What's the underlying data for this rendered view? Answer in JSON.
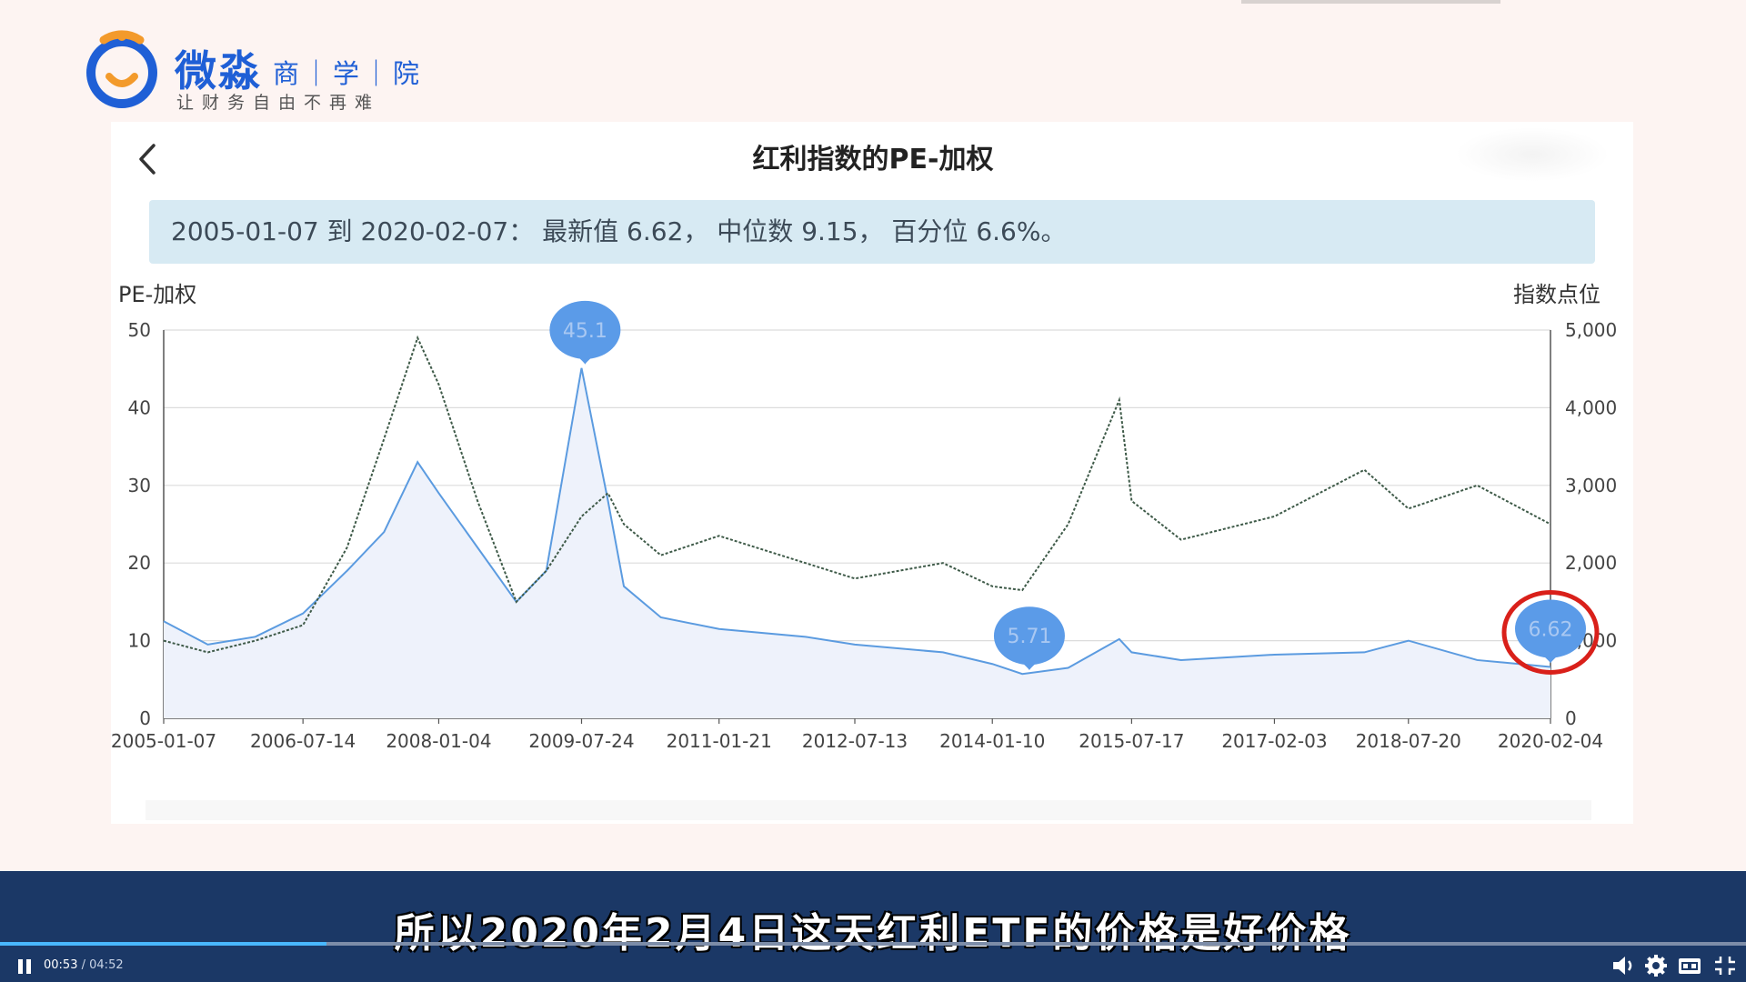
{
  "logo": {
    "name": "微淼",
    "suffix": "商｜学｜院",
    "slogan": "让财务自由不再难"
  },
  "header": {
    "title": "红利指数的PE-加权"
  },
  "summary_text": "2005-01-07 到 2020-02-07：  最新值 6.62，  中位数 9.15，  百分位 6.6%。",
  "colors": {
    "pe_line": "#5b9be0",
    "pe_fill": "#eef2fb",
    "index_line": "#3e5a48",
    "pin": "#5b9be8",
    "highlight_ring": "#d9201a",
    "video_bar": "#1b3866",
    "progress": "#49b7ff"
  },
  "chart_data": {
    "type": "line",
    "title": "红利指数的PE-加权",
    "ylabel_left": "PE-加权",
    "ylabel_right": "指数点位",
    "x_ticks": [
      "2005-01-07",
      "2006-07-14",
      "2008-01-04",
      "2009-07-24",
      "2011-01-21",
      "2012-07-13",
      "2014-01-10",
      "2015-07-17",
      "2017-02-03",
      "2018-07-20",
      "2020-02-04"
    ],
    "ylim_left": [
      0,
      50
    ],
    "yticks_left": [
      0,
      10,
      20,
      30,
      40,
      50
    ],
    "ylim_right": [
      0,
      5000
    ],
    "yticks_right": [
      "0",
      "1,000",
      "2,000",
      "3,000",
      "4,000",
      "5,000"
    ],
    "grid": true,
    "series": [
      {
        "name": "PE-加权",
        "axis": "left",
        "style": "solid-area",
        "x": [
          "2005-01-07",
          "2005-07-01",
          "2006-01-06",
          "2006-07-14",
          "2007-01-05",
          "2007-06-01",
          "2007-10-12",
          "2008-01-04",
          "2008-06-06",
          "2008-11-07",
          "2009-03-06",
          "2009-07-24",
          "2009-11-06",
          "2010-01-08",
          "2010-06-04",
          "2011-01-21",
          "2011-12-30",
          "2012-07-13",
          "2013-06-28",
          "2014-01-10",
          "2014-05-09",
          "2014-11-07",
          "2015-05-29",
          "2015-07-17",
          "2016-01-29",
          "2017-02-03",
          "2018-01-26",
          "2018-07-20",
          "2019-04-19",
          "2020-02-04"
        ],
        "values": [
          12.5,
          9.5,
          10.5,
          13.5,
          19,
          24,
          33,
          29,
          22,
          15,
          19,
          45.1,
          28,
          17,
          13,
          11.5,
          10.5,
          9.5,
          8.5,
          7,
          5.71,
          6.5,
          10.2,
          8.5,
          7.5,
          8.2,
          8.5,
          10,
          7.5,
          6.62
        ]
      },
      {
        "name": "指数点位",
        "axis": "right",
        "style": "dotted",
        "x": [
          "2005-01-07",
          "2005-07-01",
          "2006-01-06",
          "2006-07-14",
          "2007-01-05",
          "2007-06-01",
          "2007-10-12",
          "2008-01-04",
          "2008-06-06",
          "2008-11-07",
          "2009-03-06",
          "2009-07-24",
          "2009-11-06",
          "2010-01-08",
          "2010-06-04",
          "2011-01-21",
          "2011-12-30",
          "2012-07-13",
          "2013-06-28",
          "2014-01-10",
          "2014-05-09",
          "2014-11-07",
          "2015-05-29",
          "2015-07-17",
          "2016-01-29",
          "2017-02-03",
          "2018-01-26",
          "2018-07-20",
          "2019-04-19",
          "2020-02-04"
        ],
        "values": [
          1000,
          850,
          1000,
          1200,
          2200,
          3600,
          4900,
          4300,
          2800,
          1500,
          1900,
          2600,
          2900,
          2500,
          2100,
          2350,
          2000,
          1800,
          2000,
          1700,
          1650,
          2500,
          4100,
          2800,
          2300,
          2600,
          3200,
          2700,
          3000,
          2500
        ]
      }
    ],
    "annotations": [
      {
        "label": "45.1",
        "x": "2009-08-07",
        "value": 45.1,
        "kind": "pin"
      },
      {
        "label": "5.71",
        "x": "2014-06-06",
        "value": 5.71,
        "kind": "pin"
      },
      {
        "label": "6.62",
        "x": "2020-02-04",
        "value": 6.62,
        "kind": "pin",
        "highlighted": true
      }
    ]
  },
  "video": {
    "subtitle": "所以2020年2月4日这天红利ETF的价格是好价格",
    "current_time": "00:53",
    "separator": "/",
    "total_time": "04:52",
    "progress": 0.187,
    "icons": [
      "pause-icon",
      "volume-icon",
      "settings-icon",
      "captions-icon",
      "exit-fullscreen-icon"
    ]
  }
}
